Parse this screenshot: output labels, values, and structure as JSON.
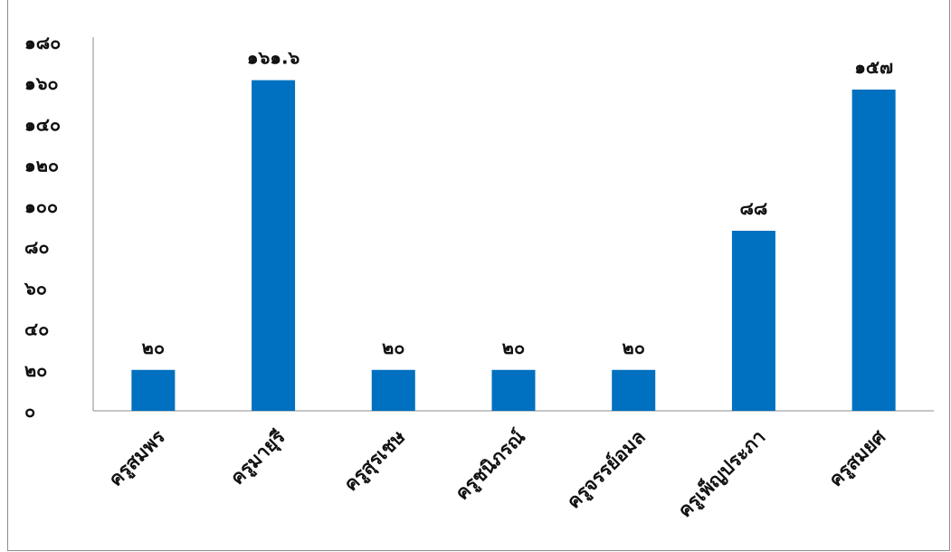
{
  "chart_data": {
    "type": "bar",
    "title": "",
    "xlabel": "",
    "ylabel": "",
    "categories": [
      "ครูสมพร",
      "ครูมายุรี",
      "ครูสุรเชษ",
      "ครูชนิภรณ์",
      "ครูจรรย์อมล",
      "ครูเพ็ญประภา",
      "ครูสมยศ"
    ],
    "values": [
      20,
      161.6,
      20,
      20,
      20,
      88,
      157
    ],
    "data_labels": [
      "๒๐",
      "๑๖๑.๖",
      "๒๐",
      "๒๐",
      "๒๐",
      "๘๘",
      "๑๕๗"
    ],
    "ylim": [
      0,
      180
    ],
    "yticks": [
      0,
      20,
      40,
      60,
      80,
      100,
      120,
      140,
      160,
      180
    ],
    "ytick_labels": [
      "๐",
      "๒๐",
      "๔๐",
      "๖๐",
      "๘๐",
      "๑๐๐",
      "๑๒๐",
      "๑๔๐",
      "๑๖๐",
      "๑๘๐"
    ],
    "bar_color": "#0070C0",
    "grid": false,
    "legend": "none"
  }
}
